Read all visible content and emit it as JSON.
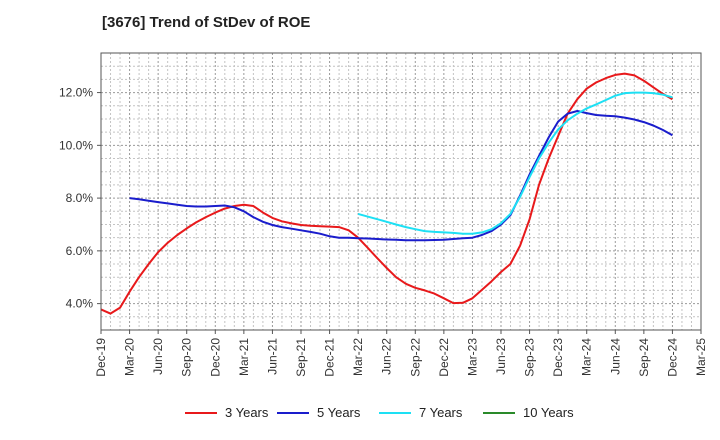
{
  "chart_data": {
    "type": "line",
    "title": "[3676]  Trend of StDev of ROE",
    "x_ticks": [
      "Dec-19",
      "Mar-20",
      "Jun-20",
      "Sep-20",
      "Dec-20",
      "Mar-21",
      "Jun-21",
      "Sep-21",
      "Dec-21",
      "Mar-22",
      "Jun-22",
      "Sep-22",
      "Dec-22",
      "Mar-23",
      "Jun-23",
      "Sep-23",
      "Dec-23",
      "Mar-24",
      "Jun-24",
      "Sep-24",
      "Dec-24",
      "Mar-25"
    ],
    "y_ticks": [
      "4.0%",
      "6.0%",
      "8.0%",
      "10.0%",
      "12.0%"
    ],
    "ylim": [
      3.0,
      13.5
    ],
    "grid": true,
    "legend_position": "bottom",
    "series": [
      {
        "name": "3 Years",
        "color": "#e8191b",
        "x": [
          0,
          0.33,
          0.67,
          1,
          1.33,
          1.67,
          2,
          2.33,
          2.67,
          3,
          3.33,
          3.67,
          4,
          4.33,
          4.67,
          5,
          5.33,
          5.67,
          6,
          6.33,
          6.67,
          7,
          7.33,
          7.67,
          8,
          8.33,
          8.67,
          9,
          9.33,
          9.67,
          10,
          10.33,
          10.67,
          11,
          11.33,
          11.67,
          12,
          12.33,
          12.67,
          13,
          13.33,
          13.67,
          14,
          14.33,
          14.67,
          15,
          15.33,
          15.67,
          16,
          16.33,
          16.67,
          17,
          17.33,
          17.67,
          18,
          18.33,
          18.67,
          19,
          19.33,
          19.67,
          20
        ],
        "y": [
          3.78,
          3.62,
          3.85,
          4.45,
          5.0,
          5.5,
          5.95,
          6.3,
          6.6,
          6.85,
          7.08,
          7.28,
          7.45,
          7.6,
          7.7,
          7.75,
          7.7,
          7.45,
          7.25,
          7.12,
          7.04,
          6.98,
          6.95,
          6.93,
          6.92,
          6.9,
          6.78,
          6.5,
          6.12,
          5.72,
          5.35,
          5.0,
          4.75,
          4.6,
          4.5,
          4.38,
          4.2,
          4.02,
          4.03,
          4.2,
          4.52,
          4.85,
          5.2,
          5.5,
          6.2,
          7.2,
          8.5,
          9.5,
          10.35,
          11.2,
          11.75,
          12.15,
          12.38,
          12.55,
          12.67,
          12.72,
          12.65,
          12.45,
          12.2,
          11.95,
          11.75
        ]
      },
      {
        "name": "5 Years",
        "color": "#1a1dcc",
        "x": [
          1,
          1.33,
          1.67,
          2,
          2.33,
          2.67,
          3,
          3.33,
          3.67,
          4,
          4.33,
          4.67,
          5,
          5.33,
          5.67,
          6,
          6.33,
          6.67,
          7,
          7.33,
          7.67,
          8,
          8.33,
          8.67,
          9,
          9.33,
          9.67,
          10,
          10.33,
          10.67,
          11,
          11.33,
          11.67,
          12,
          12.33,
          12.67,
          13,
          13.33,
          13.67,
          14,
          14.33,
          14.67,
          15,
          15.33,
          15.67,
          16,
          16.33,
          16.67,
          17,
          17.33,
          17.67,
          18,
          18.33,
          18.67,
          19,
          19.33,
          19.67,
          20
        ],
        "y": [
          8.0,
          7.96,
          7.9,
          7.85,
          7.8,
          7.75,
          7.7,
          7.68,
          7.68,
          7.7,
          7.72,
          7.65,
          7.5,
          7.28,
          7.1,
          6.98,
          6.9,
          6.84,
          6.78,
          6.72,
          6.65,
          6.55,
          6.5,
          6.5,
          6.48,
          6.47,
          6.45,
          6.43,
          6.42,
          6.4,
          6.4,
          6.4,
          6.41,
          6.42,
          6.45,
          6.48,
          6.5,
          6.6,
          6.75,
          7.0,
          7.35,
          8.1,
          8.9,
          9.6,
          10.3,
          10.9,
          11.2,
          11.3,
          11.22,
          11.15,
          11.12,
          11.1,
          11.05,
          10.98,
          10.88,
          10.75,
          10.58,
          10.38
        ]
      },
      {
        "name": "7 Years",
        "color": "#1de0f4",
        "x": [
          9,
          9.33,
          9.67,
          10,
          10.33,
          10.67,
          11,
          11.33,
          11.67,
          12,
          12.33,
          12.67,
          13,
          13.33,
          13.67,
          14,
          14.33,
          14.67,
          15,
          15.33,
          15.67,
          16,
          16.33,
          16.67,
          17,
          17.33,
          17.67,
          18,
          18.33,
          18.67,
          19,
          19.33,
          19.67,
          20
        ],
        "y": [
          7.4,
          7.3,
          7.2,
          7.1,
          7.0,
          6.9,
          6.82,
          6.75,
          6.72,
          6.7,
          6.68,
          6.65,
          6.65,
          6.7,
          6.82,
          7.05,
          7.4,
          8.05,
          8.8,
          9.5,
          10.1,
          10.6,
          10.95,
          11.2,
          11.4,
          11.55,
          11.72,
          11.88,
          11.98,
          12.0,
          12.0,
          11.98,
          11.92,
          11.82
        ]
      },
      {
        "name": "10 Years",
        "color": "#2a8a2a",
        "x": [],
        "y": []
      }
    ]
  }
}
